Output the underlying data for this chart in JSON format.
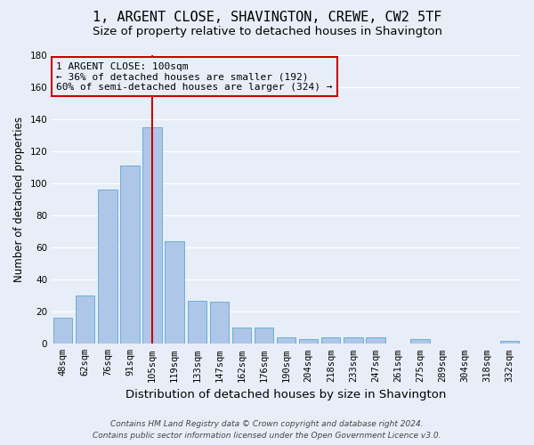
{
  "title": "1, ARGENT CLOSE, SHAVINGTON, CREWE, CW2 5TF",
  "subtitle": "Size of property relative to detached houses in Shavington",
  "xlabel": "Distribution of detached houses by size in Shavington",
  "ylabel": "Number of detached properties",
  "categories": [
    "48sqm",
    "62sqm",
    "76sqm",
    "91sqm",
    "105sqm",
    "119sqm",
    "133sqm",
    "147sqm",
    "162sqm",
    "176sqm",
    "190sqm",
    "204sqm",
    "218sqm",
    "233sqm",
    "247sqm",
    "261sqm",
    "275sqm",
    "289sqm",
    "304sqm",
    "318sqm",
    "332sqm"
  ],
  "values": [
    16,
    30,
    96,
    111,
    135,
    64,
    27,
    26,
    10,
    10,
    4,
    3,
    4,
    4,
    4,
    0,
    3,
    0,
    0,
    0,
    2
  ],
  "bar_color": "#aec6e8",
  "bar_edgecolor": "#6aafd6",
  "bg_color": "#e8eef8",
  "grid_color": "#ffffff",
  "vline_index": 4,
  "vline_color": "#cc0000",
  "annotation_line1": "1 ARGENT CLOSE: 100sqm",
  "annotation_line2": "← 36% of detached houses are smaller (192)",
  "annotation_line3": "60% of semi-detached houses are larger (324) →",
  "annotation_box_edgecolor": "#cc0000",
  "footer1": "Contains HM Land Registry data © Crown copyright and database right 2024.",
  "footer2": "Contains public sector information licensed under the Open Government Licence v3.0.",
  "ylim": [
    0,
    180
  ],
  "yticks": [
    0,
    20,
    40,
    60,
    80,
    100,
    120,
    140,
    160,
    180
  ],
  "title_fontsize": 11,
  "subtitle_fontsize": 9.5,
  "xlabel_fontsize": 9.5,
  "ylabel_fontsize": 8.5,
  "tick_fontsize": 7.5,
  "annotation_fontsize": 8,
  "footer_fontsize": 6.5
}
